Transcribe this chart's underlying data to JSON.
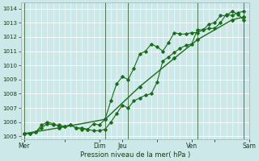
{
  "title": "",
  "xlabel": "Pression niveau de la mer( hPa )",
  "ylabel": "",
  "bg_color": "#cce8e8",
  "grid_color": "#ffffff",
  "line_color": "#1a6b1a",
  "marker_color": "#1a6b1a",
  "ylim": [
    1004.8,
    1014.4
  ],
  "yticks": [
    1005,
    1006,
    1007,
    1008,
    1009,
    1010,
    1011,
    1012,
    1013,
    1014
  ],
  "day_labels": [
    "Mer",
    "",
    "Dim",
    "Jeu",
    "",
    "Ven",
    "",
    "Sam"
  ],
  "day_positions": [
    0,
    3.5,
    6.5,
    8.5,
    11.5,
    14.5,
    16.5,
    19.5
  ],
  "vline_positions": [
    0,
    7,
    9,
    15,
    19
  ],
  "series1_x": [
    0,
    0.5,
    1,
    1.5,
    2,
    2.5,
    3,
    3.5,
    4,
    4.5,
    5,
    5.5,
    6,
    6.5,
    7,
    7.5,
    8,
    8.5,
    9,
    9.5,
    10,
    10.5,
    11,
    11.5,
    12,
    12.5,
    13,
    13.5,
    14,
    14.5,
    15,
    15.5,
    16,
    16.5,
    17,
    17.5,
    18,
    18.5,
    19
  ],
  "series1_y": [
    1005.2,
    1005.2,
    1005.3,
    1005.6,
    1005.9,
    1005.8,
    1005.8,
    1005.7,
    1005.8,
    1005.6,
    1005.6,
    1005.5,
    1005.4,
    1005.4,
    1005.5,
    1006.0,
    1006.6,
    1007.2,
    1007.0,
    1007.5,
    1007.7,
    1007.9,
    1008.0,
    1008.8,
    1010.3,
    1010.6,
    1010.9,
    1011.2,
    1011.4,
    1011.5,
    1012.5,
    1012.5,
    1012.6,
    1012.6,
    1013.0,
    1013.6,
    1013.5,
    1013.7,
    1013.8
  ],
  "series2_x": [
    0,
    0.5,
    1,
    1.5,
    2,
    2.5,
    3,
    3.5,
    4,
    4.5,
    5,
    5.5,
    6,
    6.5,
    7,
    7.5,
    8,
    8.5,
    9,
    9.5,
    10,
    10.5,
    11,
    11.5,
    12,
    12.5,
    13,
    13.5,
    14,
    14.5,
    15,
    15.5,
    16,
    16.5,
    17,
    17.5,
    18,
    18.5,
    19
  ],
  "series2_y": [
    1005.2,
    1005.2,
    1005.3,
    1005.8,
    1006.0,
    1005.9,
    1005.7,
    1005.7,
    1005.8,
    1005.6,
    1005.5,
    1005.5,
    1005.9,
    1005.8,
    1006.2,
    1007.5,
    1008.7,
    1009.2,
    1009.0,
    1009.8,
    1010.8,
    1011.0,
    1011.5,
    1011.3,
    1011.0,
    1011.6,
    1012.3,
    1012.2,
    1012.2,
    1012.3,
    1012.3,
    1012.5,
    1012.9,
    1013.0,
    1013.5,
    1013.5,
    1013.8,
    1013.6,
    1013.2
  ],
  "series3_x": [
    0,
    3,
    7,
    10,
    13,
    15,
    18,
    19
  ],
  "series3_y": [
    1005.2,
    1005.6,
    1006.2,
    1008.5,
    1010.5,
    1011.8,
    1013.2,
    1013.4
  ],
  "x_min": -0.3,
  "x_max": 19.5
}
